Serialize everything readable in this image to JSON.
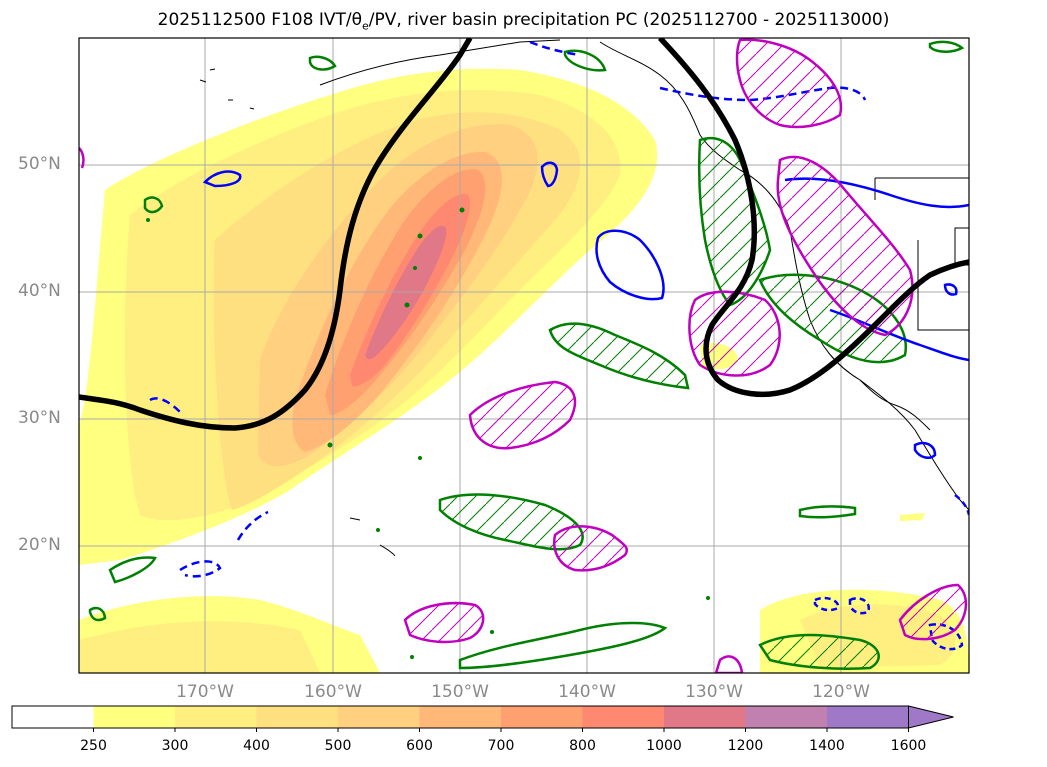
{
  "title": {
    "prefix": "2025112500 F108 IVT/θ",
    "sub": "e",
    "suffix": "/PV, river basin precipitation PC (2025112700 - 2025113000)"
  },
  "lat_labels": [
    "50°N",
    "40°N",
    "30°N",
    "20°N"
  ],
  "lon_labels": [
    "170°W",
    "160°W",
    "150°W",
    "140°W",
    "130°W",
    "120°W"
  ],
  "colorbar": {
    "ticks": [
      "250",
      "300",
      "400",
      "500",
      "600",
      "700",
      "800",
      "1000",
      "1200",
      "1400",
      "1600"
    ],
    "colors": [
      "#ffffff",
      "#ffff80",
      "#ffee80",
      "#ffe080",
      "#ffd080",
      "#ffb878",
      "#ffa070",
      "#ff8870",
      "#e07888",
      "#c080b0",
      "#a078c8"
    ],
    "extend": "max"
  },
  "legend_colors": {
    "ivt_peak": "#f08080",
    "theta_e_contour": "#000000",
    "precip_green": "#008000",
    "pv_blue": "#0000ff",
    "hatched_magenta": "#c000c0"
  }
}
